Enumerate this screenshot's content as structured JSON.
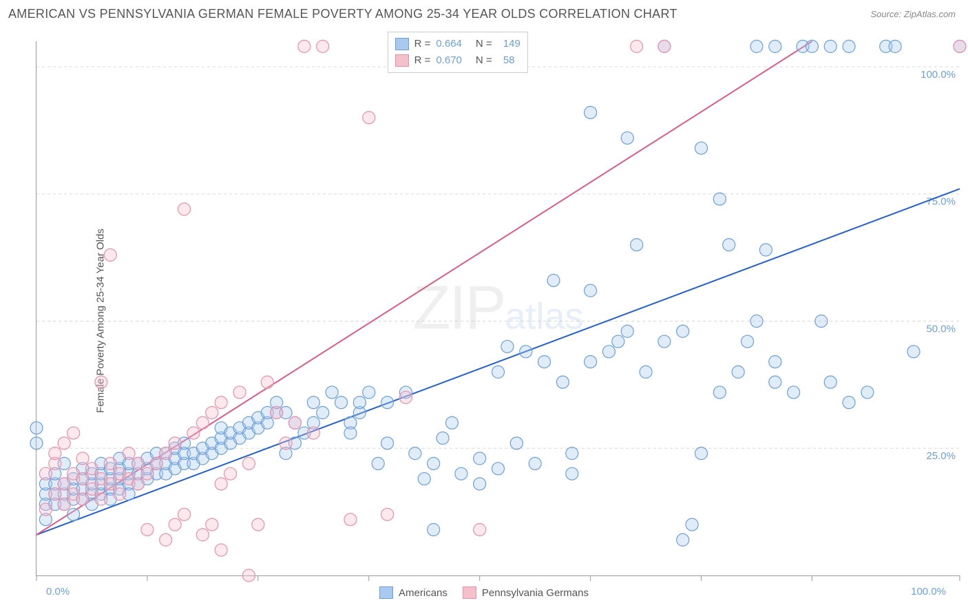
{
  "title": "AMERICAN VS PENNSYLVANIA GERMAN FEMALE POVERTY AMONG 25-34 YEAR OLDS CORRELATION CHART",
  "source": "Source: ZipAtlas.com",
  "ylabel": "Female Poverty Among 25-34 Year Olds",
  "watermark_main": "ZIP",
  "watermark_sub": "atlas",
  "chart": {
    "type": "scatter",
    "background_color": "#ffffff",
    "grid_color": "#d8d8d8",
    "axis_color": "#999999",
    "xlim": [
      0,
      100
    ],
    "ylim": [
      0,
      105
    ],
    "xtick_positions": [
      0,
      12,
      24,
      36,
      48,
      60,
      72,
      84,
      100
    ],
    "xtick_labels": {
      "0": "0.0%",
      "100": "100.0%"
    },
    "ytick_positions": [
      25,
      50,
      75,
      100
    ],
    "ytick_labels": {
      "25": "25.0%",
      "50": "50.0%",
      "75": "75.0%",
      "100": "100.0%"
    },
    "tick_label_color": "#6a9fdc",
    "marker_radius": 9,
    "marker_stroke_width": 1.2,
    "marker_fill_opacity": 0.35,
    "line_width": 2,
    "series": [
      {
        "name": "Americans",
        "color_fill": "#a9c9ef",
        "color_stroke": "#6a9fdc",
        "line_color": "#1f5fd0",
        "R": "0.664",
        "N": "149",
        "regression": {
          "x1": 0,
          "y1": 8,
          "x2": 100,
          "y2": 76
        },
        "points": [
          [
            0,
            26
          ],
          [
            0,
            29
          ],
          [
            1,
            14
          ],
          [
            1,
            16
          ],
          [
            1,
            18
          ],
          [
            1,
            11
          ],
          [
            2,
            14
          ],
          [
            2,
            16
          ],
          [
            2,
            18
          ],
          [
            2,
            20
          ],
          [
            3,
            14
          ],
          [
            3,
            16
          ],
          [
            3,
            18
          ],
          [
            3,
            22
          ],
          [
            4,
            15
          ],
          [
            4,
            17
          ],
          [
            4,
            19
          ],
          [
            4,
            12
          ],
          [
            5,
            15
          ],
          [
            5,
            17
          ],
          [
            5,
            19
          ],
          [
            5,
            21
          ],
          [
            6,
            16
          ],
          [
            6,
            18
          ],
          [
            6,
            20
          ],
          [
            6,
            14
          ],
          [
            7,
            16
          ],
          [
            7,
            18
          ],
          [
            7,
            20
          ],
          [
            7,
            22
          ],
          [
            8,
            17
          ],
          [
            8,
            19
          ],
          [
            8,
            21
          ],
          [
            8,
            15
          ],
          [
            9,
            17
          ],
          [
            9,
            19
          ],
          [
            9,
            21
          ],
          [
            9,
            23
          ],
          [
            10,
            18
          ],
          [
            10,
            20
          ],
          [
            10,
            22
          ],
          [
            10,
            16
          ],
          [
            11,
            18
          ],
          [
            11,
            20
          ],
          [
            11,
            22
          ],
          [
            12,
            19
          ],
          [
            12,
            21
          ],
          [
            12,
            23
          ],
          [
            13,
            20
          ],
          [
            13,
            22
          ],
          [
            13,
            24
          ],
          [
            14,
            20
          ],
          [
            14,
            22
          ],
          [
            14,
            24
          ],
          [
            15,
            21
          ],
          [
            15,
            23
          ],
          [
            15,
            25
          ],
          [
            16,
            22
          ],
          [
            16,
            24
          ],
          [
            16,
            26
          ],
          [
            17,
            22
          ],
          [
            17,
            24
          ],
          [
            18,
            23
          ],
          [
            18,
            25
          ],
          [
            19,
            24
          ],
          [
            19,
            26
          ],
          [
            20,
            25
          ],
          [
            20,
            27
          ],
          [
            20,
            29
          ],
          [
            21,
            26
          ],
          [
            21,
            28
          ],
          [
            22,
            27
          ],
          [
            22,
            29
          ],
          [
            23,
            28
          ],
          [
            23,
            30
          ],
          [
            24,
            29
          ],
          [
            24,
            31
          ],
          [
            25,
            30
          ],
          [
            25,
            32
          ],
          [
            26,
            32
          ],
          [
            26,
            34
          ],
          [
            27,
            24
          ],
          [
            27,
            32
          ],
          [
            28,
            26
          ],
          [
            28,
            30
          ],
          [
            29,
            28
          ],
          [
            30,
            30
          ],
          [
            30,
            34
          ],
          [
            31,
            32
          ],
          [
            32,
            36
          ],
          [
            33,
            34
          ],
          [
            34,
            30
          ],
          [
            34,
            28
          ],
          [
            35,
            32
          ],
          [
            35,
            34
          ],
          [
            36,
            36
          ],
          [
            37,
            22
          ],
          [
            38,
            26
          ],
          [
            38,
            34
          ],
          [
            40,
            36
          ],
          [
            41,
            24
          ],
          [
            42,
            19
          ],
          [
            43,
            22
          ],
          [
            43,
            9
          ],
          [
            44,
            27
          ],
          [
            45,
            30
          ],
          [
            46,
            20
          ],
          [
            48,
            23
          ],
          [
            48,
            18
          ],
          [
            50,
            21
          ],
          [
            50,
            40
          ],
          [
            51,
            45
          ],
          [
            52,
            26
          ],
          [
            53,
            44
          ],
          [
            54,
            22
          ],
          [
            55,
            42
          ],
          [
            56,
            58
          ],
          [
            57,
            38
          ],
          [
            58,
            24
          ],
          [
            58,
            20
          ],
          [
            60,
            42
          ],
          [
            60,
            56
          ],
          [
            60,
            91
          ],
          [
            62,
            44
          ],
          [
            63,
            46
          ],
          [
            64,
            48
          ],
          [
            64,
            86
          ],
          [
            65,
            65
          ],
          [
            66,
            40
          ],
          [
            68,
            46
          ],
          [
            68,
            104
          ],
          [
            70,
            48
          ],
          [
            70,
            7
          ],
          [
            71,
            10
          ],
          [
            72,
            24
          ],
          [
            72,
            84
          ],
          [
            74,
            36
          ],
          [
            74,
            74
          ],
          [
            75,
            65
          ],
          [
            76,
            40
          ],
          [
            77,
            46
          ],
          [
            78,
            50
          ],
          [
            78,
            104
          ],
          [
            79,
            64
          ],
          [
            80,
            38
          ],
          [
            80,
            42
          ],
          [
            80,
            104
          ],
          [
            82,
            36
          ],
          [
            83,
            104
          ],
          [
            84,
            104
          ],
          [
            85,
            50
          ],
          [
            86,
            38
          ],
          [
            86,
            104
          ],
          [
            88,
            34
          ],
          [
            88,
            104
          ],
          [
            90,
            36
          ],
          [
            92,
            104
          ],
          [
            93,
            104
          ],
          [
            95,
            44
          ],
          [
            100,
            104
          ]
        ]
      },
      {
        "name": "Pennsylvania Germans",
        "color_fill": "#f4c0cc",
        "color_stroke": "#e98fa8",
        "line_color": "#e05a87",
        "R": "0.670",
        "N": "58",
        "regression": {
          "x1": 0,
          "y1": 8,
          "x2": 84,
          "y2": 105
        },
        "points": [
          [
            1,
            13
          ],
          [
            1,
            20
          ],
          [
            2,
            16
          ],
          [
            2,
            22
          ],
          [
            2,
            24
          ],
          [
            3,
            14
          ],
          [
            3,
            18
          ],
          [
            3,
            26
          ],
          [
            4,
            16
          ],
          [
            4,
            20
          ],
          [
            4,
            28
          ],
          [
            5,
            15
          ],
          [
            5,
            19
          ],
          [
            5,
            23
          ],
          [
            6,
            17
          ],
          [
            6,
            21
          ],
          [
            7,
            15
          ],
          [
            7,
            19
          ],
          [
            7,
            38
          ],
          [
            8,
            18
          ],
          [
            8,
            22
          ],
          [
            8,
            63
          ],
          [
            9,
            16
          ],
          [
            9,
            20
          ],
          [
            10,
            19
          ],
          [
            10,
            24
          ],
          [
            11,
            18
          ],
          [
            11,
            22
          ],
          [
            12,
            20
          ],
          [
            12,
            9
          ],
          [
            13,
            22
          ],
          [
            14,
            7
          ],
          [
            14,
            24
          ],
          [
            15,
            10
          ],
          [
            15,
            26
          ],
          [
            16,
            12
          ],
          [
            16,
            72
          ],
          [
            17,
            28
          ],
          [
            18,
            8
          ],
          [
            18,
            30
          ],
          [
            19,
            10
          ],
          [
            19,
            32
          ],
          [
            20,
            5
          ],
          [
            20,
            18
          ],
          [
            20,
            34
          ],
          [
            21,
            20
          ],
          [
            22,
            36
          ],
          [
            23,
            22
          ],
          [
            23,
            0
          ],
          [
            24,
            10
          ],
          [
            25,
            38
          ],
          [
            26,
            32
          ],
          [
            27,
            26
          ],
          [
            28,
            30
          ],
          [
            29,
            104
          ],
          [
            30,
            28
          ],
          [
            31,
            104
          ],
          [
            34,
            11
          ],
          [
            36,
            90
          ],
          [
            38,
            12
          ],
          [
            40,
            35
          ],
          [
            48,
            9
          ],
          [
            65,
            104
          ],
          [
            68,
            104
          ],
          [
            100,
            104
          ]
        ]
      }
    ]
  },
  "legend_top": {
    "label_R": "R =",
    "label_N": "N ="
  },
  "legend_bottom": [
    {
      "label": "Americans",
      "fill": "#a9c9ef",
      "stroke": "#6a9fdc"
    },
    {
      "label": "Pennsylvania Germans",
      "fill": "#f4c0cc",
      "stroke": "#e98fa8"
    }
  ]
}
